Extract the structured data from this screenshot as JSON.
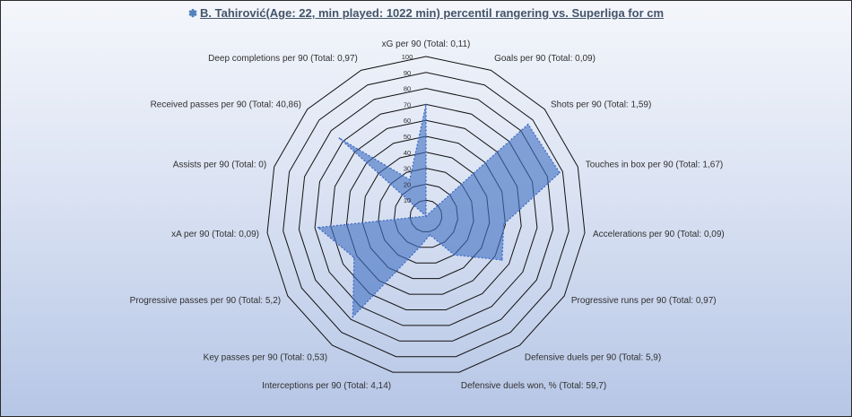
{
  "chart_data": {
    "type": "radar",
    "title": "B. Tahirović(Age: 22, min played: 1022 min) percentil rangering vs. Superliga for cm",
    "title_icon": "football-icon",
    "axes": [
      "xG per 90 (Total: 0,11)",
      "Goals per 90 (Total: 0,09)",
      "Shots per 90 (Total: 1,59)",
      "Touches in box per 90 (Total: 1,67)",
      "Accelerations per 90 (Total: 0,09)",
      "Progressive runs per 90 (Total: 0,97)",
      "Defensive duels per 90 (Total: 5,9)",
      "Defensive duels won, % (Total: 59,7)",
      "Interceptions per 90 (Total: 4,14)",
      "Key passes per 90 (Total: 0,53)",
      "Progressive passes per 90 (Total: 5,2)",
      "xA per 90 (Total: 0,09)",
      "Assists per 90 (Total: 0)",
      "Received passes per 90 (Total: 40,86)",
      "Deep completions per 90 (Total: 0,97)"
    ],
    "series": [
      {
        "values": [
          70,
          0,
          86,
          88,
          49,
          55,
          30,
          12,
          20,
          78,
          52,
          68,
          0,
          73,
          25
        ]
      }
    ],
    "r_ticks": [
      10,
      20,
      30,
      40,
      50,
      60,
      70,
      80,
      90,
      100
    ],
    "r_range": [
      0,
      100
    ],
    "grid": true,
    "colors": {
      "fill": "#4472c4",
      "fill_opacity": 0.62,
      "line": "#3f6bc4",
      "grid": "#111111"
    }
  }
}
